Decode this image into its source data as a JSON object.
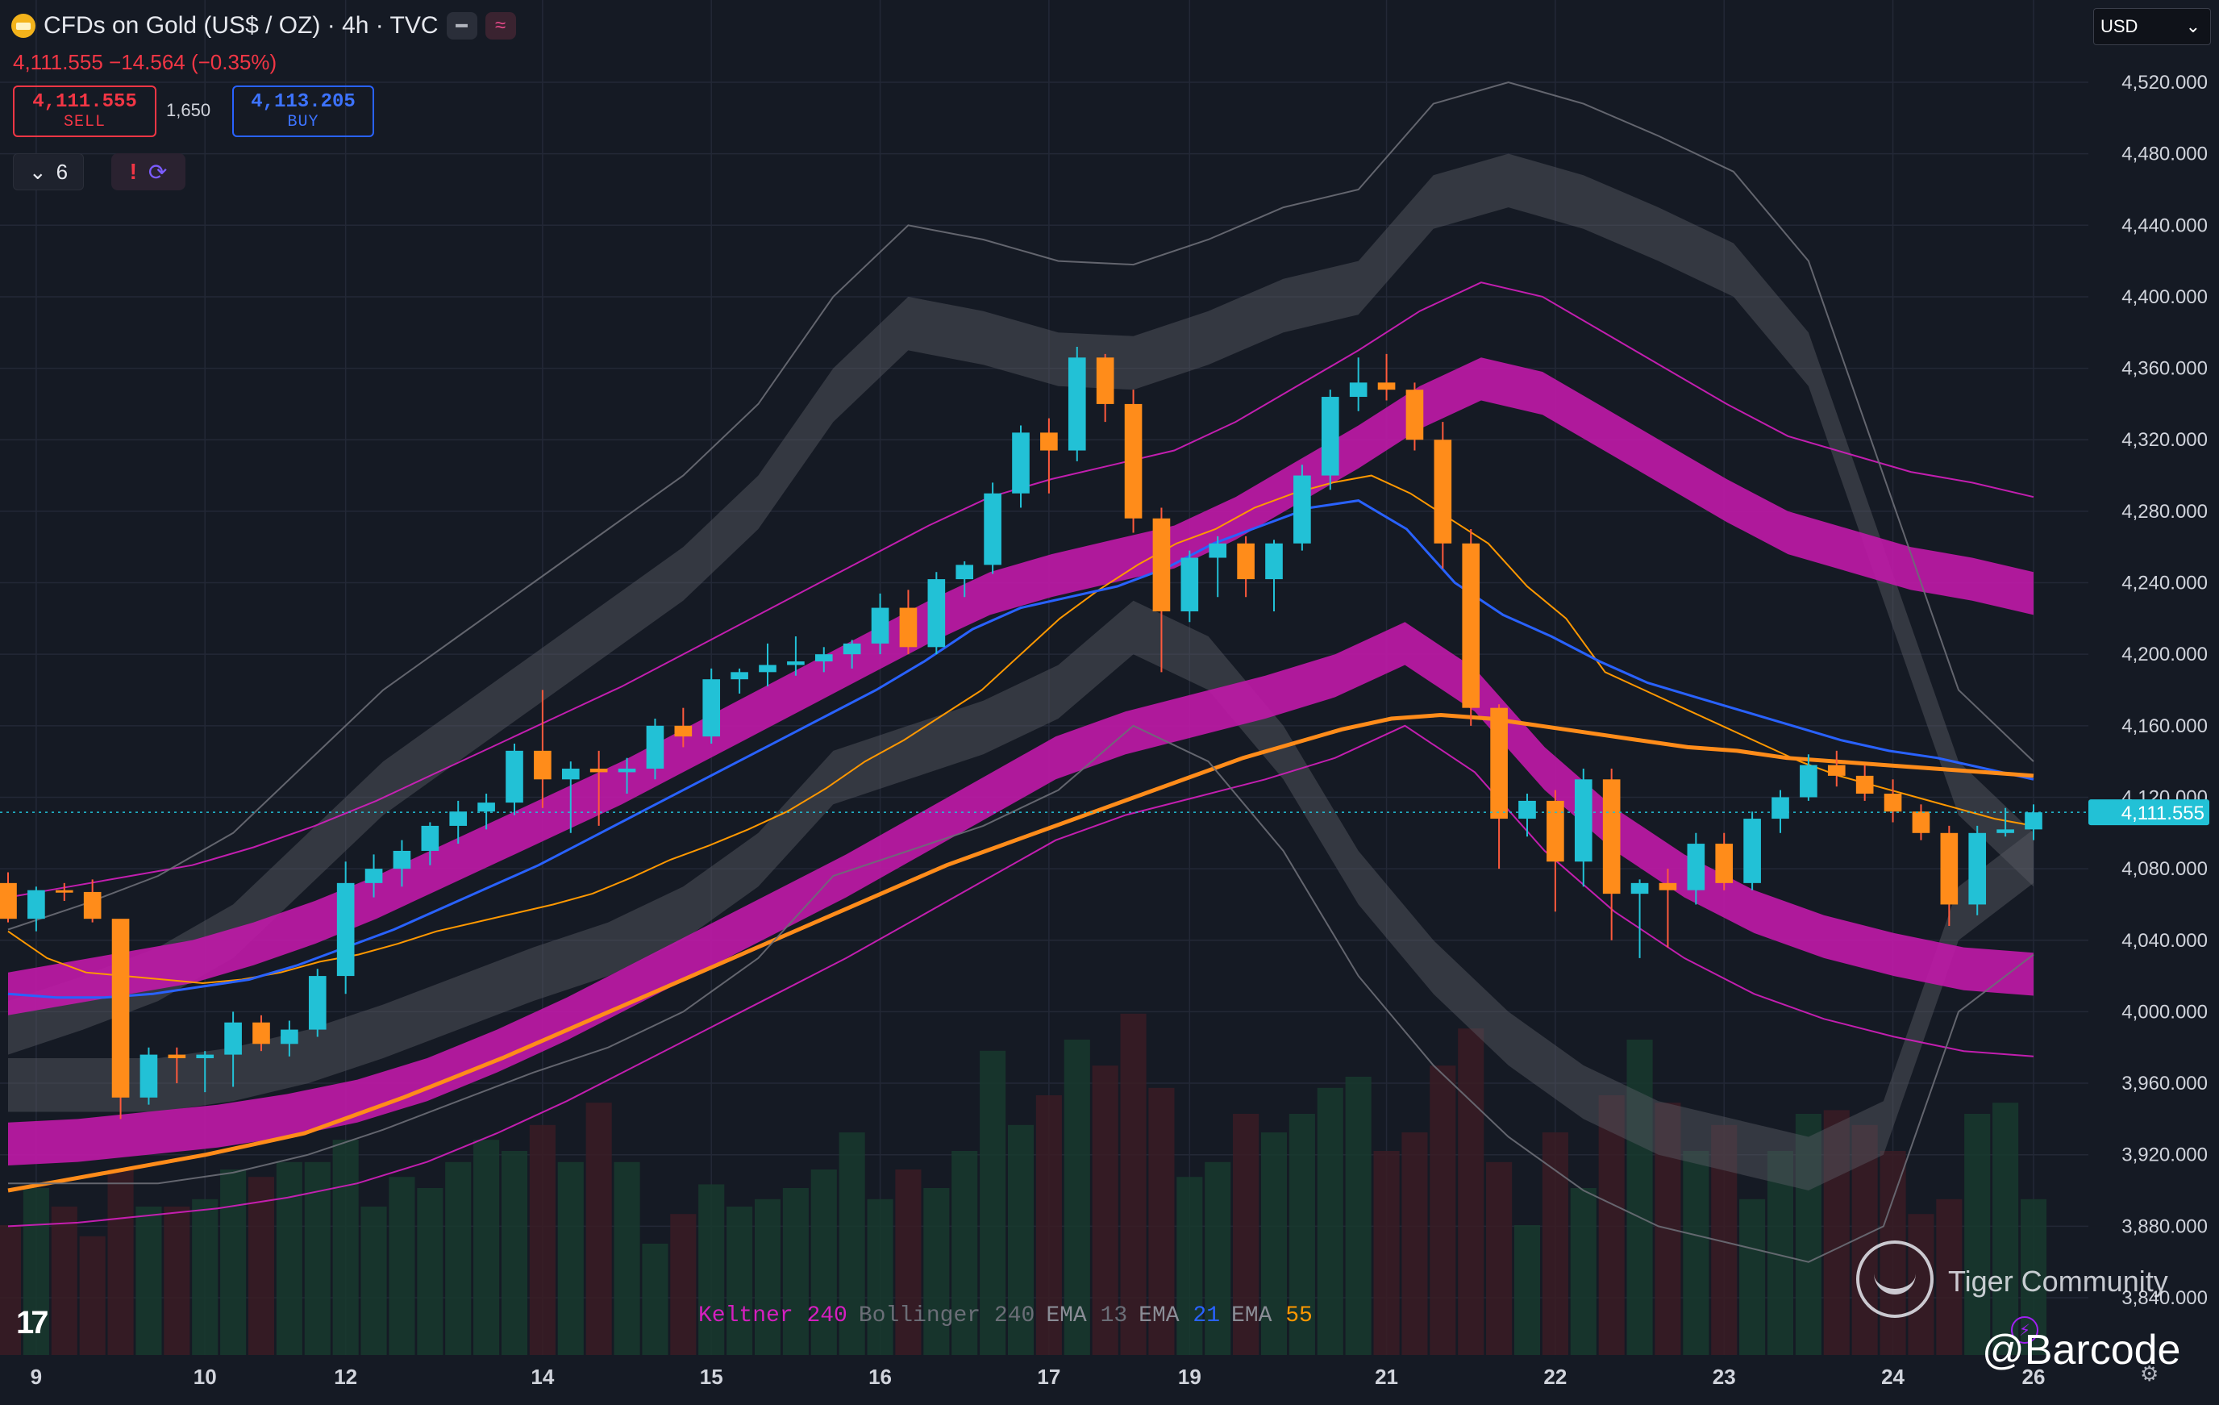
{
  "header": {
    "title": "CFDs on Gold (US$ / OZ) · 4h · TVC",
    "last_change": "4,111.555 −14.564 (−0.35%)",
    "sell_price": "4,111.555",
    "sell_label": "SELL",
    "spread": "1,650",
    "buy_price": "4,113.205",
    "buy_label": "BUY",
    "collapse_count": "6",
    "currency": "USD"
  },
  "colors": {
    "background": "#151a24",
    "up": "#22c1d6",
    "down": "#ff8c1a",
    "keltner": "#d51fbf",
    "bollinger": "#6b6e77",
    "ema13": "#ff9800",
    "ema21": "#2962ff",
    "ema55": "#ff8c1a"
  },
  "legend": {
    "keltner_name": "Keltner",
    "keltner_len": "240",
    "bollinger_name": "Bollinger",
    "bollinger_len": "240",
    "ema13_name": "EMA",
    "ema13_len": "13",
    "ema21_name": "EMA",
    "ema21_len": "21",
    "ema55_name": "EMA",
    "ema55_len": "55"
  },
  "watermark": {
    "brand": "Tiger Community",
    "handle": "@Barcode"
  },
  "chart_data": {
    "type": "candlestick",
    "title": "CFDs on Gold (US$ / OZ) · 4h · TVC",
    "ylim": [
      3820,
      4540
    ],
    "y_ticks": [
      4520,
      4480,
      4440,
      4400,
      4360,
      4320,
      4280,
      4240,
      4200,
      4160,
      4120,
      4080,
      4040,
      4000,
      3960,
      3920,
      3880,
      3840
    ],
    "y_tick_labels": [
      "4,520.000",
      "4,480.000",
      "4,440.000",
      "4,400.000",
      "4,360.000",
      "4,320.000",
      "4,280.000",
      "4,240.000",
      "4,200.000",
      "4,160.000",
      "4,120.000",
      "4,080.000",
      "4,040.000",
      "4,000.000",
      "3,960.000",
      "3,920.000",
      "3,880.000",
      "3,840.000"
    ],
    "x_labels": [
      {
        "label": "9",
        "bar": 1
      },
      {
        "label": "10",
        "bar": 7
      },
      {
        "label": "12",
        "bar": 12
      },
      {
        "label": "14",
        "bar": 19
      },
      {
        "label": "15",
        "bar": 25
      },
      {
        "label": "16",
        "bar": 31
      },
      {
        "label": "17",
        "bar": 37
      },
      {
        "label": "19",
        "bar": 42
      },
      {
        "label": "21",
        "bar": 49
      },
      {
        "label": "22",
        "bar": 55
      },
      {
        "label": "23",
        "bar": 61
      },
      {
        "label": "24",
        "bar": 67
      },
      {
        "label": "26",
        "bar": 72
      }
    ],
    "last_price": 4111.555,
    "last_price_label": "4,111.555",
    "candles": [
      [
        4072,
        4078,
        4050,
        4052
      ],
      [
        4052,
        4070,
        4045,
        4068
      ],
      [
        4068,
        4072,
        4062,
        4067
      ],
      [
        4067,
        4074,
        4050,
        4052
      ],
      [
        4052,
        4048,
        3940,
        3952
      ],
      [
        3952,
        3980,
        3948,
        3976
      ],
      [
        3976,
        3980,
        3960,
        3974
      ],
      [
        3974,
        3978,
        3955,
        3976
      ],
      [
        3976,
        4000,
        3958,
        3994
      ],
      [
        3994,
        3998,
        3978,
        3982
      ],
      [
        3982,
        3995,
        3975,
        3990
      ],
      [
        3990,
        4024,
        3986,
        4020
      ],
      [
        4020,
        4084,
        4010,
        4072
      ],
      [
        4072,
        4088,
        4064,
        4080
      ],
      [
        4080,
        4096,
        4070,
        4090
      ],
      [
        4090,
        4106,
        4082,
        4104
      ],
      [
        4104,
        4118,
        4094,
        4112
      ],
      [
        4112,
        4122,
        4102,
        4117
      ],
      [
        4117,
        4150,
        4110,
        4146
      ],
      [
        4146,
        4180,
        4114,
        4130
      ],
      [
        4130,
        4140,
        4100,
        4136
      ],
      [
        4136,
        4146,
        4104,
        4134
      ],
      [
        4134,
        4142,
        4122,
        4136
      ],
      [
        4136,
        4164,
        4130,
        4160
      ],
      [
        4160,
        4170,
        4148,
        4154
      ],
      [
        4154,
        4192,
        4150,
        4186
      ],
      [
        4186,
        4192,
        4178,
        4190
      ],
      [
        4190,
        4206,
        4182,
        4194
      ],
      [
        4194,
        4210,
        4188,
        4196
      ],
      [
        4196,
        4204,
        4190,
        4200
      ],
      [
        4200,
        4208,
        4192,
        4206
      ],
      [
        4206,
        4234,
        4200,
        4226
      ],
      [
        4226,
        4236,
        4200,
        4204
      ],
      [
        4204,
        4246,
        4200,
        4242
      ],
      [
        4242,
        4252,
        4232,
        4250
      ],
      [
        4250,
        4296,
        4245,
        4290
      ],
      [
        4290,
        4328,
        4282,
        4324
      ],
      [
        4324,
        4332,
        4290,
        4314
      ],
      [
        4314,
        4372,
        4308,
        4366
      ],
      [
        4366,
        4368,
        4330,
        4340
      ],
      [
        4340,
        4348,
        4268,
        4276
      ],
      [
        4276,
        4282,
        4190,
        4224
      ],
      [
        4224,
        4258,
        4218,
        4254
      ],
      [
        4254,
        4266,
        4232,
        4262
      ],
      [
        4262,
        4266,
        4232,
        4242
      ],
      [
        4242,
        4264,
        4224,
        4262
      ],
      [
        4262,
        4306,
        4258,
        4300
      ],
      [
        4300,
        4348,
        4292,
        4344
      ],
      [
        4344,
        4366,
        4336,
        4352
      ],
      [
        4352,
        4368,
        4342,
        4348
      ],
      [
        4348,
        4352,
        4314,
        4320
      ],
      [
        4320,
        4330,
        4248,
        4262
      ],
      [
        4262,
        4270,
        4160,
        4170
      ],
      [
        4170,
        4172,
        4080,
        4108
      ],
      [
        4108,
        4122,
        4098,
        4118
      ],
      [
        4118,
        4124,
        4056,
        4084
      ],
      [
        4084,
        4136,
        4070,
        4130
      ],
      [
        4130,
        4136,
        4040,
        4066
      ],
      [
        4066,
        4074,
        4030,
        4072
      ],
      [
        4072,
        4080,
        4036,
        4068
      ],
      [
        4068,
        4100,
        4060,
        4094
      ],
      [
        4094,
        4100,
        4068,
        4072
      ],
      [
        4072,
        4112,
        4068,
        4108
      ],
      [
        4108,
        4124,
        4100,
        4120
      ],
      [
        4120,
        4144,
        4118,
        4138
      ],
      [
        4138,
        4146,
        4126,
        4132
      ],
      [
        4132,
        4138,
        4118,
        4122
      ],
      [
        4122,
        4130,
        4106,
        4112
      ],
      [
        4112,
        4116,
        4096,
        4100
      ],
      [
        4100,
        4104,
        4048,
        4060
      ],
      [
        4060,
        4104,
        4054,
        4100
      ],
      [
        4100,
        4114,
        4098,
        4102
      ],
      [
        4102,
        4116,
        4096,
        4111.555
      ]
    ],
    "volume_direction": "up/down colored bars behind price (relative heights)",
    "volumes": [
      0.35,
      0.45,
      0.4,
      0.32,
      0.5,
      0.4,
      0.4,
      0.42,
      0.5,
      0.48,
      0.52,
      0.52,
      0.58,
      0.4,
      0.48,
      0.45,
      0.52,
      0.58,
      0.55,
      0.62,
      0.52,
      0.68,
      0.52,
      0.3,
      0.38,
      0.46,
      0.4,
      0.42,
      0.45,
      0.5,
      0.6,
      0.42,
      0.5,
      0.45,
      0.55,
      0.82,
      0.62,
      0.7,
      0.85,
      0.78,
      0.92,
      0.72,
      0.48,
      0.52,
      0.65,
      0.6,
      0.65,
      0.72,
      0.75,
      0.55,
      0.6,
      0.78,
      0.88,
      0.52,
      0.35,
      0.6,
      0.45,
      0.7,
      0.85,
      0.68,
      0.55,
      0.62,
      0.42,
      0.55,
      0.65,
      0.66,
      0.62,
      0.55,
      0.38,
      0.42,
      0.65,
      0.68,
      0.42
    ],
    "series": [
      {
        "name": "EMA 13",
        "color": "#ff9800",
        "values": [
          4045,
          4030,
          4022,
          4020,
          4018,
          4016,
          4018,
          4022,
          4028,
          4032,
          4038,
          4045,
          4050,
          4055,
          4060,
          4066,
          4075,
          4085,
          4093,
          4102,
          4112,
          4125,
          4140,
          4152,
          4166,
          4180,
          4200,
          4220,
          4236,
          4250,
          4262,
          4270,
          4282,
          4290,
          4296,
          4300,
          4290,
          4276,
          4262,
          4238,
          4220,
          4190,
          4180,
          4170,
          4160,
          4150,
          4140,
          4132,
          4126,
          4120,
          4114,
          4108,
          4104
        ]
      },
      {
        "name": "EMA 21",
        "color": "#2962ff",
        "values": [
          4010,
          4008,
          4008,
          4010,
          4014,
          4018,
          4026,
          4036,
          4046,
          4058,
          4070,
          4082,
          4096,
          4110,
          4124,
          4138,
          4152,
          4166,
          4180,
          4196,
          4214,
          4226,
          4232,
          4238,
          4248,
          4262,
          4272,
          4282,
          4286,
          4270,
          4240,
          4222,
          4210,
          4196,
          4184,
          4176,
          4168,
          4160,
          4152,
          4146,
          4142,
          4136,
          4130
        ]
      },
      {
        "name": "EMA 55",
        "color": "#ff8c1a",
        "values": [
          3900,
          3905,
          3910,
          3915,
          3920,
          3926,
          3932,
          3942,
          3952,
          3963,
          3974,
          3986,
          3998,
          4010,
          4022,
          4034,
          4046,
          4058,
          4070,
          4082,
          4092,
          4102,
          4112,
          4122,
          4132,
          4142,
          4150,
          4158,
          4164,
          4166,
          4164,
          4160,
          4156,
          4152,
          4148,
          4146,
          4142,
          4140,
          4138,
          4136,
          4134,
          4132
        ]
      },
      {
        "name": "Keltner 240 upper",
        "color": "#d51fbf",
        "values": [
          4064,
          4070,
          4076,
          4082,
          4092,
          4104,
          4118,
          4134,
          4150,
          4166,
          4182,
          4200,
          4218,
          4236,
          4254,
          4272,
          4288,
          4298,
          4306,
          4314,
          4330,
          4350,
          4370,
          4392,
          4408,
          4400,
          4380,
          4360,
          4340,
          4322,
          4312,
          4302,
          4296,
          4288
        ]
      },
      {
        "name": "Keltner 240 lower",
        "color": "#d51fbf",
        "values": [
          3880,
          3882,
          3886,
          3890,
          3896,
          3904,
          3916,
          3932,
          3950,
          3970,
          3990,
          4010,
          4030,
          4052,
          4074,
          4096,
          4110,
          4120,
          4130,
          4142,
          4160,
          4134,
          4090,
          4056,
          4030,
          4010,
          3996,
          3986,
          3978,
          3975
        ]
      },
      {
        "name": "Bollinger 240 upper",
        "color": "#6b6e77",
        "values": [
          4046,
          4060,
          4076,
          4100,
          4140,
          4180,
          4210,
          4240,
          4270,
          4300,
          4340,
          4400,
          4440,
          4432,
          4420,
          4418,
          4432,
          4450,
          4460,
          4508,
          4520,
          4508,
          4490,
          4470,
          4420,
          4300,
          4180,
          4140
        ]
      },
      {
        "name": "Bollinger 240 lower",
        "color": "#6b6e77",
        "values": [
          3904,
          3904,
          3904,
          3910,
          3920,
          3934,
          3950,
          3966,
          3980,
          4000,
          4030,
          4076,
          4090,
          4104,
          4124,
          4160,
          4140,
          4090,
          4020,
          3970,
          3930,
          3900,
          3880,
          3870,
          3860,
          3880,
          4000,
          4032
        ]
      }
    ]
  }
}
